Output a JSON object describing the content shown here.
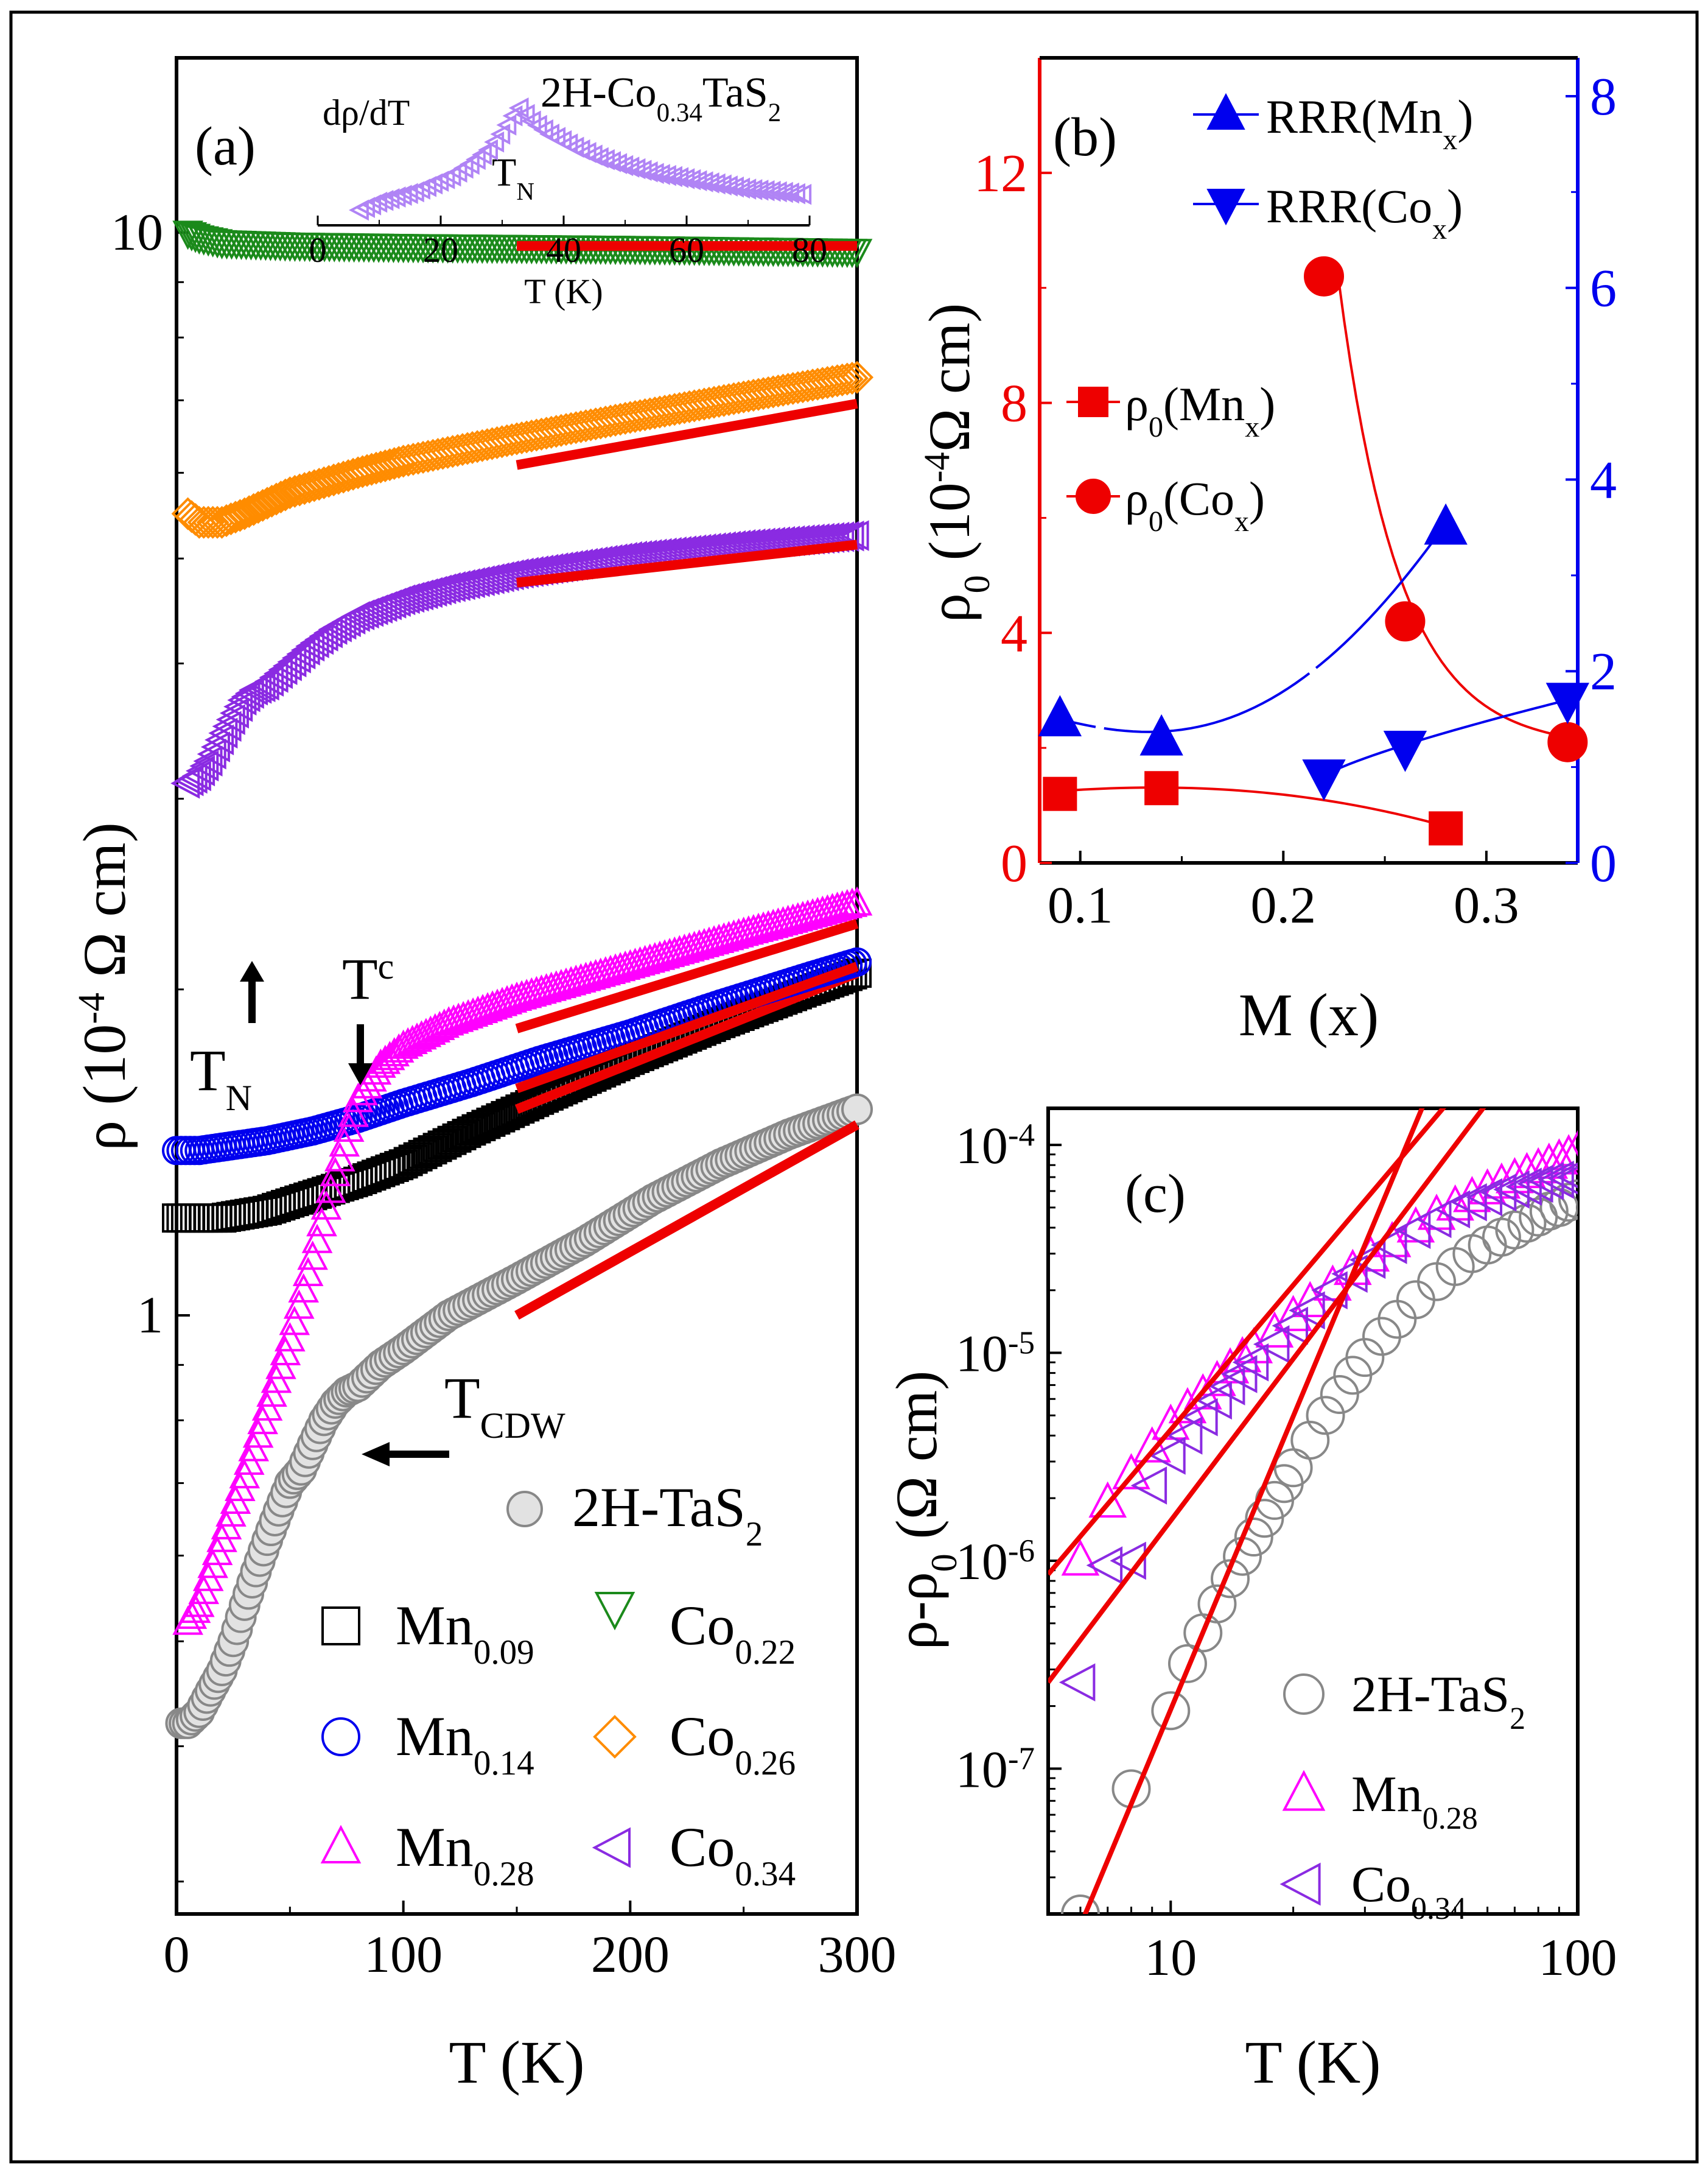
{
  "chart_data": [
    {
      "panel": "(a)",
      "type": "scatter",
      "xlabel": "T (K)",
      "ylabel_main": "ρ (10",
      "ylabel_sup": "-4",
      "ylabel_tail": " Ω cm)",
      "xlim": [
        0,
        300
      ],
      "ylim": [
        0.28,
        14.5
      ],
      "yscale": "log",
      "xticks": [
        0,
        100,
        200,
        300
      ],
      "xticklabels": [
        "0",
        "100",
        "200",
        "300"
      ],
      "yticks": [
        1,
        10
      ],
      "yticklabels": [
        "1",
        "10"
      ],
      "legend_position": "bottom-right",
      "series": [
        {
          "name": "Mn",
          "sub": "0.09",
          "marker": "square",
          "color": "#000000",
          "x": [
            0,
            10,
            20,
            40,
            60,
            80,
            100,
            130,
            160,
            200,
            240,
            280,
            300
          ],
          "y": [
            1.23,
            1.23,
            1.23,
            1.25,
            1.29,
            1.33,
            1.38,
            1.48,
            1.58,
            1.72,
            1.86,
            2.0,
            2.07
          ],
          "fit": {
            "x": [
              150,
              300
            ],
            "y": [
              1.55,
              2.07
            ]
          }
        },
        {
          "name": "Mn",
          "sub": "0.14",
          "marker": "circle",
          "color": "#0000ee",
          "x": [
            0,
            10,
            20,
            40,
            60,
            80,
            100,
            130,
            160,
            200,
            240,
            280,
            300
          ],
          "y": [
            1.42,
            1.42,
            1.43,
            1.45,
            1.48,
            1.52,
            1.57,
            1.64,
            1.72,
            1.82,
            1.94,
            2.06,
            2.12
          ],
          "fit": {
            "x": [
              150,
              300
            ],
            "y": [
              1.62,
              2.1
            ]
          }
        },
        {
          "name": "Mn",
          "sub": "0.28",
          "marker": "triangle-up",
          "color": "#ff00ff",
          "x": [
            5,
            10,
            20,
            30,
            40,
            50,
            60,
            70,
            80,
            90,
            100,
            120,
            150,
            200,
            250,
            300
          ],
          "y": [
            0.52,
            0.54,
            0.62,
            0.71,
            0.82,
            0.95,
            1.13,
            1.35,
            1.58,
            1.7,
            1.77,
            1.86,
            1.96,
            2.1,
            2.25,
            2.4
          ],
          "fit": {
            "x": [
              150,
              300
            ],
            "y": [
              1.84,
              2.3
            ]
          }
        },
        {
          "name": "Co",
          "sub": "0.22",
          "marker": "triangle-down",
          "color": "#1b8a1b",
          "x": [
            5,
            10,
            20,
            50,
            100,
            150,
            200,
            250,
            300
          ],
          "y": [
            10.0,
            9.9,
            9.8,
            9.75,
            9.72,
            9.7,
            9.68,
            9.65,
            9.62
          ],
          "fit": {
            "x": [
              150,
              300
            ],
            "y": [
              9.72,
              9.72
            ]
          }
        },
        {
          "name": "Co",
          "sub": "0.26",
          "marker": "diamond",
          "color": "#ff8c00",
          "x": [
            5,
            10,
            20,
            30,
            50,
            80,
            100,
            150,
            200,
            250,
            300
          ],
          "y": [
            5.5,
            5.4,
            5.4,
            5.5,
            5.75,
            6.0,
            6.15,
            6.45,
            6.75,
            7.05,
            7.35
          ],
          "fit": {
            "x": [
              150,
              300
            ],
            "y": [
              6.1,
              6.95
            ]
          }
        },
        {
          "name": "Co",
          "sub": "0.34",
          "marker": "triangle-left",
          "color": "#8a2be2",
          "x": [
            5,
            10,
            15,
            20,
            25,
            30,
            35,
            40,
            50,
            60,
            70,
            80,
            100,
            120,
            150,
            200,
            250,
            300
          ],
          "y": [
            3.1,
            3.15,
            3.25,
            3.4,
            3.55,
            3.7,
            3.78,
            3.82,
            3.98,
            4.15,
            4.3,
            4.42,
            4.58,
            4.7,
            4.84,
            5.02,
            5.15,
            5.25
          ],
          "fit": {
            "x": [
              150,
              300
            ],
            "y": [
              4.75,
              5.15
            ]
          }
        },
        {
          "name": "2H-TaS",
          "sub": "2",
          "marker": "sphere",
          "color": "#888888",
          "x": [
            2,
            5,
            10,
            15,
            20,
            25,
            30,
            35,
            40,
            45,
            50,
            55,
            60,
            65,
            70,
            75,
            80,
            90,
            100,
            120,
            150,
            180,
            210,
            240,
            270,
            300
          ],
          "y": [
            0.42,
            0.42,
            0.43,
            0.45,
            0.47,
            0.5,
            0.54,
            0.58,
            0.62,
            0.66,
            0.7,
            0.72,
            0.76,
            0.8,
            0.83,
            0.85,
            0.86,
            0.9,
            0.93,
            1.0,
            1.08,
            1.17,
            1.28,
            1.38,
            1.47,
            1.55
          ],
          "fit": {
            "x": [
              150,
              300
            ],
            "y": [
              1.0,
              1.5
            ]
          }
        }
      ],
      "annotations": {
        "panel_label": "(a)",
        "tn_main": "T",
        "tn_sub": "N",
        "tc_main": "T",
        "tc_sub": "c",
        "tcdw_main": "T",
        "tcdw_sub": "CDW"
      },
      "inset": {
        "ylabel": "dρ/dT",
        "title_main": "2H-Co",
        "title_sub": "0.34",
        "title_tail": "TaS",
        "title_sub2": "2",
        "xlabel": "T (K)",
        "xlim": [
          0,
          80
        ],
        "xticks": [
          0,
          20,
          40,
          60,
          80
        ],
        "xticklabels": [
          "0",
          "20",
          "40",
          "60",
          "80"
        ],
        "tn_main": "T",
        "tn_sub": "N",
        "x": [
          7,
          10,
          13,
          16,
          19,
          22,
          25,
          28,
          30,
          32,
          33,
          35,
          38,
          42,
          46,
          50,
          55,
          60,
          65,
          70,
          75,
          79
        ],
        "y": [
          0.0,
          0.06,
          0.1,
          0.14,
          0.2,
          0.26,
          0.35,
          0.46,
          0.58,
          0.72,
          0.78,
          0.68,
          0.58,
          0.48,
          0.4,
          0.34,
          0.28,
          0.24,
          0.2,
          0.16,
          0.14,
          0.12
        ]
      }
    },
    {
      "panel": "(b)",
      "type": "scatter",
      "xlabel": "M (x)",
      "ylabel_main": "ρ",
      "ylabel_sub": "0",
      "ylabel_mid": " (10",
      "ylabel_sup": "-4",
      "ylabel_tail": "Ω cm)",
      "xlim": [
        0.08,
        0.345
      ],
      "ylim_left": [
        0,
        14
      ],
      "ylim_right": [
        0,
        8.4
      ],
      "xticks": [
        0.1,
        0.2,
        0.3
      ],
      "xticklabels": [
        "0.1",
        "0.2",
        "0.3"
      ],
      "yticks_left": [
        0,
        4,
        8,
        12
      ],
      "yticklabels_left": [
        "0",
        "4",
        "8",
        "12"
      ],
      "yticks_right": [
        0,
        2,
        4,
        6,
        8
      ],
      "yticklabels_right": [
        "0",
        "2",
        "4",
        "6",
        "8"
      ],
      "left_color": "#ee0000",
      "right_color": "#0000ee",
      "series": [
        {
          "name": "ρ",
          "sub": "0",
          "tail": "(Mn",
          "sub2": "x",
          "end": ")",
          "axis": "left",
          "marker": "square",
          "color": "#ee0000",
          "x": [
            0.09,
            0.14,
            0.28
          ],
          "y": [
            1.2,
            1.3,
            0.6
          ]
        },
        {
          "name": "ρ",
          "sub": "0",
          "tail": "(Co",
          "sub2": "x",
          "end": ")",
          "axis": "left",
          "marker": "circle",
          "color": "#ee0000",
          "x": [
            0.22,
            0.26,
            0.34
          ],
          "y": [
            10.2,
            4.2,
            2.1
          ]
        },
        {
          "name": "RRR",
          "sub": "",
          "tail": "(Mn",
          "sub2": "x",
          "end": ")",
          "axis": "right",
          "marker": "triangle-up",
          "color": "#0000ee",
          "x": [
            0.09,
            0.14,
            0.28
          ],
          "y": [
            1.5,
            1.3,
            3.5
          ]
        },
        {
          "name": "RRR",
          "sub": "",
          "tail": "(Co",
          "sub2": "x",
          "end": ")",
          "axis": "right",
          "marker": "triangle-down",
          "color": "#0000ee",
          "x": [
            0.22,
            0.26,
            0.34
          ],
          "y": [
            0.9,
            1.2,
            1.7
          ]
        }
      ],
      "panel_label": "(b)"
    },
    {
      "panel": "(c)",
      "type": "scatter",
      "xlabel": "T (K)",
      "ylabel_main": "ρ-ρ",
      "ylabel_sub": "0",
      "ylabel_tail": " (Ω cm)",
      "xscale": "log",
      "yscale": "log",
      "xlim": [
        5,
        100
      ],
      "ylim": [
        2e-08,
        0.00015
      ],
      "xticks": [
        10,
        100
      ],
      "xticklabels": [
        "10",
        "100"
      ],
      "yticks": [
        1e-07,
        1e-06,
        1e-05,
        0.0001
      ],
      "ytick_base": "10",
      "ytick_exps": [
        "-7",
        "-6",
        "-5",
        "-4"
      ],
      "series": [
        {
          "name": "2H-TaS",
          "sub": "2",
          "marker": "circle",
          "color": "#888888",
          "x": [
            6,
            8,
            10,
            11,
            12,
            13,
            14,
            15,
            16,
            17,
            18,
            19,
            20,
            22,
            24,
            26,
            28,
            30,
            33,
            36,
            40,
            45,
            50,
            55,
            60,
            65,
            70,
            75,
            80,
            85,
            90,
            95,
            100
          ],
          "y": [
            2e-08,
            8e-08,
            1.9e-07,
            3.2e-07,
            4.5e-07,
            6.2e-07,
            8.2e-07,
            1.05e-06,
            1.3e-06,
            1.6e-06,
            1.95e-06,
            2.35e-06,
            2.8e-06,
            3.8e-06,
            5e-06,
            6.3e-06,
            7.8e-06,
            9.5e-06,
            1.2e-05,
            1.45e-05,
            1.8e-05,
            2.2e-05,
            2.6e-05,
            3e-05,
            3.3e-05,
            3.6e-05,
            3.9e-05,
            4.2e-05,
            4.5e-05,
            4.8e-05,
            5e-05,
            5.3e-05,
            5.5e-05
          ]
        },
        {
          "name": "Mn",
          "sub": "0.28",
          "marker": "triangle-up",
          "color": "#ff00ff",
          "x": [
            6,
            7,
            8,
            9,
            10,
            11,
            12,
            13,
            14,
            15,
            16,
            18,
            20,
            22,
            25,
            28,
            31,
            35,
            40,
            45,
            50,
            55,
            60,
            65,
            70,
            75,
            80,
            85,
            90,
            95,
            100
          ],
          "y": [
            1e-06,
            1.9e-06,
            2.6e-06,
            3.5e-06,
            4.5e-06,
            5.4e-06,
            6.3e-06,
            7.3e-06,
            8.4e-06,
            9.5e-06,
            1.05e-05,
            1.25e-05,
            1.5e-05,
            1.75e-05,
            2.1e-05,
            2.5e-05,
            2.9e-05,
            3.4e-05,
            4e-05,
            4.6e-05,
            5.1e-05,
            5.6e-05,
            6.1e-05,
            6.5e-05,
            6.9e-05,
            7.3e-05,
            7.7e-05,
            8.1e-05,
            8.5e-05,
            8.9e-05,
            9.3e-05
          ]
        },
        {
          "name": "Co",
          "sub": "0.34",
          "marker": "triangle-left",
          "color": "#8a2be2",
          "x": [
            6,
            7,
            8,
            9,
            10,
            11,
            12,
            13,
            14,
            15,
            16,
            18,
            20,
            22,
            25,
            28,
            31,
            35,
            40,
            45,
            50,
            55,
            60,
            65,
            70,
            75,
            80,
            85,
            90,
            95,
            100
          ],
          "y": [
            2.6e-07,
            9.5e-07,
            1e-06,
            2.3e-06,
            3.2e-06,
            4e-06,
            4.9e-06,
            5.9e-06,
            6.9e-06,
            7.9e-06,
            9e-06,
            1.1e-05,
            1.35e-05,
            1.6e-05,
            2e-05,
            2.4e-05,
            2.8e-05,
            3.3e-05,
            3.9e-05,
            4.4e-05,
            4.9e-05,
            5.3e-05,
            5.6e-05,
            5.9e-05,
            6.1e-05,
            6.3e-05,
            6.5e-05,
            6.7e-05,
            6.8e-05,
            6.9e-05,
            7e-05
          ]
        }
      ],
      "fits": [
        {
          "x": [
            5,
            48
          ],
          "y": [
            8.6e-07,
            0.00016
          ]
        },
        {
          "x": [
            5,
            60
          ],
          "y": [
            2.6e-07,
            0.00016
          ]
        },
        {
          "x": [
            5.8,
            42
          ],
          "y": [
            1.5e-08,
            0.00016
          ]
        }
      ],
      "panel_label": "(c)"
    }
  ]
}
